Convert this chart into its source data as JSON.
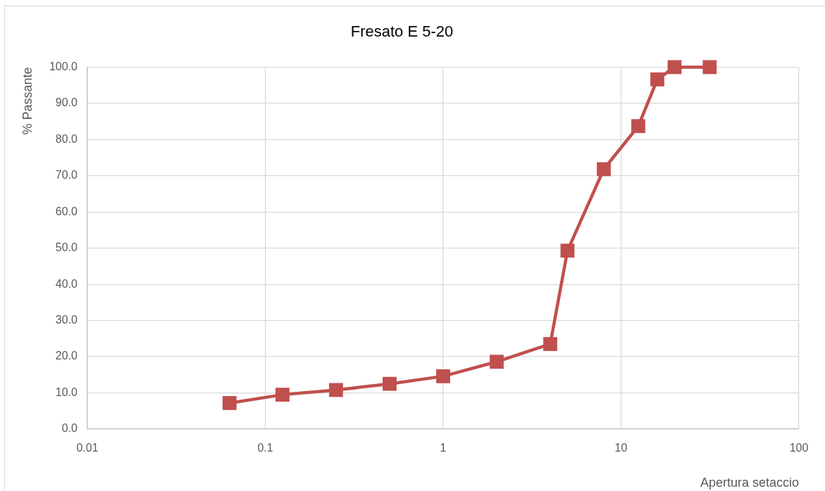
{
  "chart_data": {
    "type": "line",
    "title": "Fresato E 5-20",
    "xlabel": "Apertura setaccio",
    "ylabel": "% Passante",
    "x": [
      0.063,
      0.125,
      0.25,
      0.5,
      1,
      2,
      4,
      5,
      8,
      12.5,
      16,
      20,
      31.5
    ],
    "series": [
      {
        "color": "#c0504d",
        "values": [
          7.2,
          9.5,
          10.8,
          12.5,
          14.6,
          18.6,
          23.5,
          49.3,
          71.8,
          83.7,
          96.6,
          100,
          100
        ]
      }
    ],
    "log": "x",
    "xlim": [
      0.01,
      100
    ],
    "xticks": [
      0.01,
      0.1,
      1,
      10,
      100
    ],
    "ylim": [
      0,
      100
    ],
    "yticks": [
      {
        "value": 0,
        "label": "0.0"
      },
      {
        "value": 10,
        "label": "10.0"
      },
      {
        "value": 20,
        "label": "20.0"
      },
      {
        "value": 30,
        "label": "30.0"
      },
      {
        "value": 40,
        "label": "40.0"
      },
      {
        "value": 50,
        "label": "50.0"
      },
      {
        "value": 60,
        "label": "60.0"
      },
      {
        "value": 70,
        "label": "70.0"
      },
      {
        "value": 80,
        "label": "80.0"
      },
      {
        "value": 90,
        "label": "90.0"
      },
      {
        "value": 100,
        "label": "100.0"
      }
    ],
    "grid": true,
    "marker": "square",
    "line_style": "solid"
  }
}
